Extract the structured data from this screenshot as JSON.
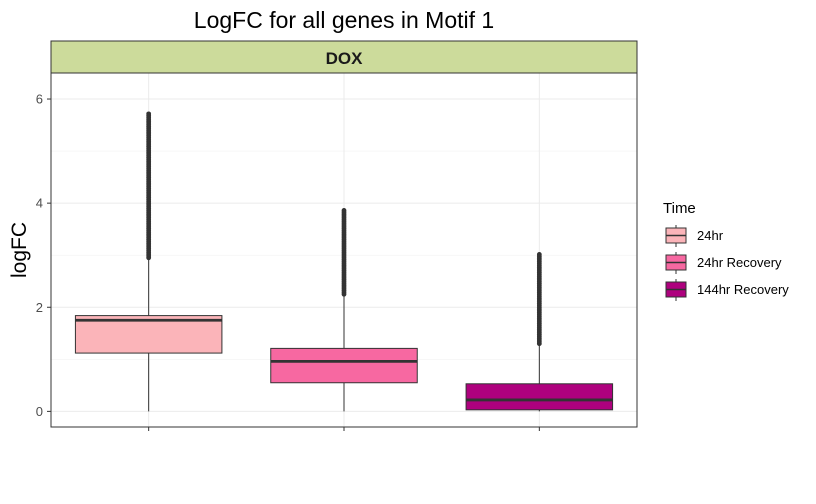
{
  "chart_data": {
    "type": "boxplot",
    "title": "LogFC for all genes in Motif 1",
    "facet": "DOX",
    "xlabel": "",
    "ylabel": "logFC",
    "ylim": [
      -0.3,
      6.5
    ],
    "y_ticks": [
      0,
      2,
      4,
      6
    ],
    "grid": true,
    "legend": {
      "title": "Time",
      "position": "right",
      "entries": [
        "24hr",
        "24hr Recovery",
        "144hr Recovery"
      ]
    },
    "series": [
      {
        "name": "24hr",
        "color": "#FBB4B9",
        "whisker_low": 0.0,
        "q1": 1.12,
        "median": 1.75,
        "q3": 1.84,
        "whisker_high": 2.95,
        "outlier_range": [
          2.95,
          5.72
        ]
      },
      {
        "name": "24hr Recovery",
        "color": "#F768A1",
        "whisker_low": 0.0,
        "q1": 0.55,
        "median": 0.96,
        "q3": 1.21,
        "whisker_high": 2.25,
        "outlier_range": [
          2.25,
          3.88
        ]
      },
      {
        "name": "144hr Recovery",
        "color": "#AE017E",
        "whisker_low": 0.0,
        "q1": 0.03,
        "median": 0.22,
        "q3": 0.53,
        "whisker_high": 1.3,
        "outlier_range": [
          1.3,
          3.02
        ]
      }
    ],
    "strip_color": "#CCDB9B"
  }
}
